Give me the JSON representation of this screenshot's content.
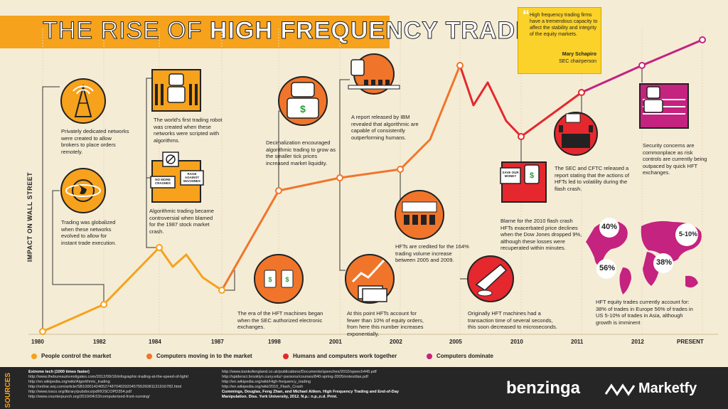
{
  "title": {
    "thin": "THE RISE OF",
    "bold": "HIGH FREQUENCY TRADING"
  },
  "ylabel": "IMPACT ON WALL STREET",
  "years": [
    "1980",
    "1982",
    "1984",
    "1987",
    "1998",
    "2001",
    "2002",
    "2005",
    "2010",
    "2011",
    "2012",
    "PRESENT"
  ],
  "notes": {
    "n1": "Privately dedicated networks were created to allow brokers to place orders remotely.",
    "n2": "Trading was globalized when these networks evolved to allow for instant trade execution.",
    "n3": "The world's first trading robot was created when these networks were scripted with algorithms.",
    "n4": "Algorithmic trading became controversial when blamed for the 1987 stock market crash.",
    "n5": "Decimalization encouraged algorithmic trading to grow as the smaller tick prices increased market liquidity.",
    "n6": "A report released by IBM revealed that algorithmic are capable of consistently outperforming humans.",
    "n7": "The era of the HFT machines began when the SEC authorized electronic exchanges.",
    "n8": "At this point HFTs account for fewer than 10% of equity orders, from here this number increases exponentially.",
    "n9": "HFTs are credited for the 164% trading volume increase between 2005 and 2009.",
    "n10": "Originally HFT machines had a transaction time of several seconds, this soon decreased to microseconds.",
    "n11": "Blame for the 2010 flash crash HFTs exacerbated price declines when the Dow Jones dropped 9%, although these losses were recuperated within minutes.",
    "n12": "The SEC and CFTC released a report stating that the actions of HFTs led to volatility during the flash crash.",
    "n13": "Security concerns are commonplace as risk controls are currently being outpaced by quick HFT exchanges.",
    "n14": "HFT equity trades currently account for: 38% of trades in Europe 56% of trades in US 5-10% of trades in Asia, although growth is imminent"
  },
  "signs": {
    "s1": "NO MORE CRASHES",
    "s2": "RAGE AGAINST MACHINES",
    "s3": "SAVE OUR MONEY"
  },
  "quote": {
    "text": "High frequency trading firms have a tremendous capacity to affect the stability and integrity of the equity markets.",
    "author": "Mary Schapiro",
    "role": "SEC chairperson"
  },
  "map_pcts": {
    "europe": "40%",
    "asia": "5-10%",
    "us": "56%",
    "europe2": "38%"
  },
  "legend": [
    {
      "label": "People control the market",
      "color": "#f6a21c"
    },
    {
      "label": "Computers moving in to the market",
      "color": "#f0752a"
    },
    {
      "label": "Humans and computers work together",
      "color": "#e4282e"
    },
    {
      "label": "Computers dominate",
      "color": "#c4237f"
    }
  ],
  "sources_label": "SOURCES",
  "sources_left": [
    "Extreme tech (1000 times faster)",
    "http://www.thebureauinvestigates.com/2012/09/16/infographic-trading-at-the-speed-of-light/",
    "http://en.wikipedia.org/wiki/Algorithmic_trading",
    "http://online.wsj.com/article/SB10001424052748704029204575526081131916782.html",
    "http://www.iosco.org/library/pubdocs/pdf/IOSCOPD354.pdf",
    "http://www.counterpunch.org/2010/04/23/computerized-front-running/"
  ],
  "sources_right": [
    "http://www.bankofengland.co.uk/publications/Documents/speeches/2010/speech445.pdf",
    "http://spidersci.brooklyn.cuny.edu/~parsons/courses/840-spring-2005/notes/das.pdf",
    "http://en.wikipedia.org/wiki/High-frequency_trading",
    "http://en.wikipedia.org/wiki/2010_Flash_Crash",
    "Cummings, Douglas, Feng Zhan, and Michael Aitken. High Frequency Trading and End-of-Day",
    "Manipulation. Diss. York University, 2012. N.p.: n.p.,n.d. Print."
  ],
  "brand1": "benzinga",
  "brand2": "Marketfy",
  "colors": {
    "orange": "#f6a21c",
    "dark_orange": "#f0752a",
    "red": "#e4282e",
    "magenta": "#c4237f",
    "bg": "#f5ecd6",
    "footer": "#262626"
  }
}
